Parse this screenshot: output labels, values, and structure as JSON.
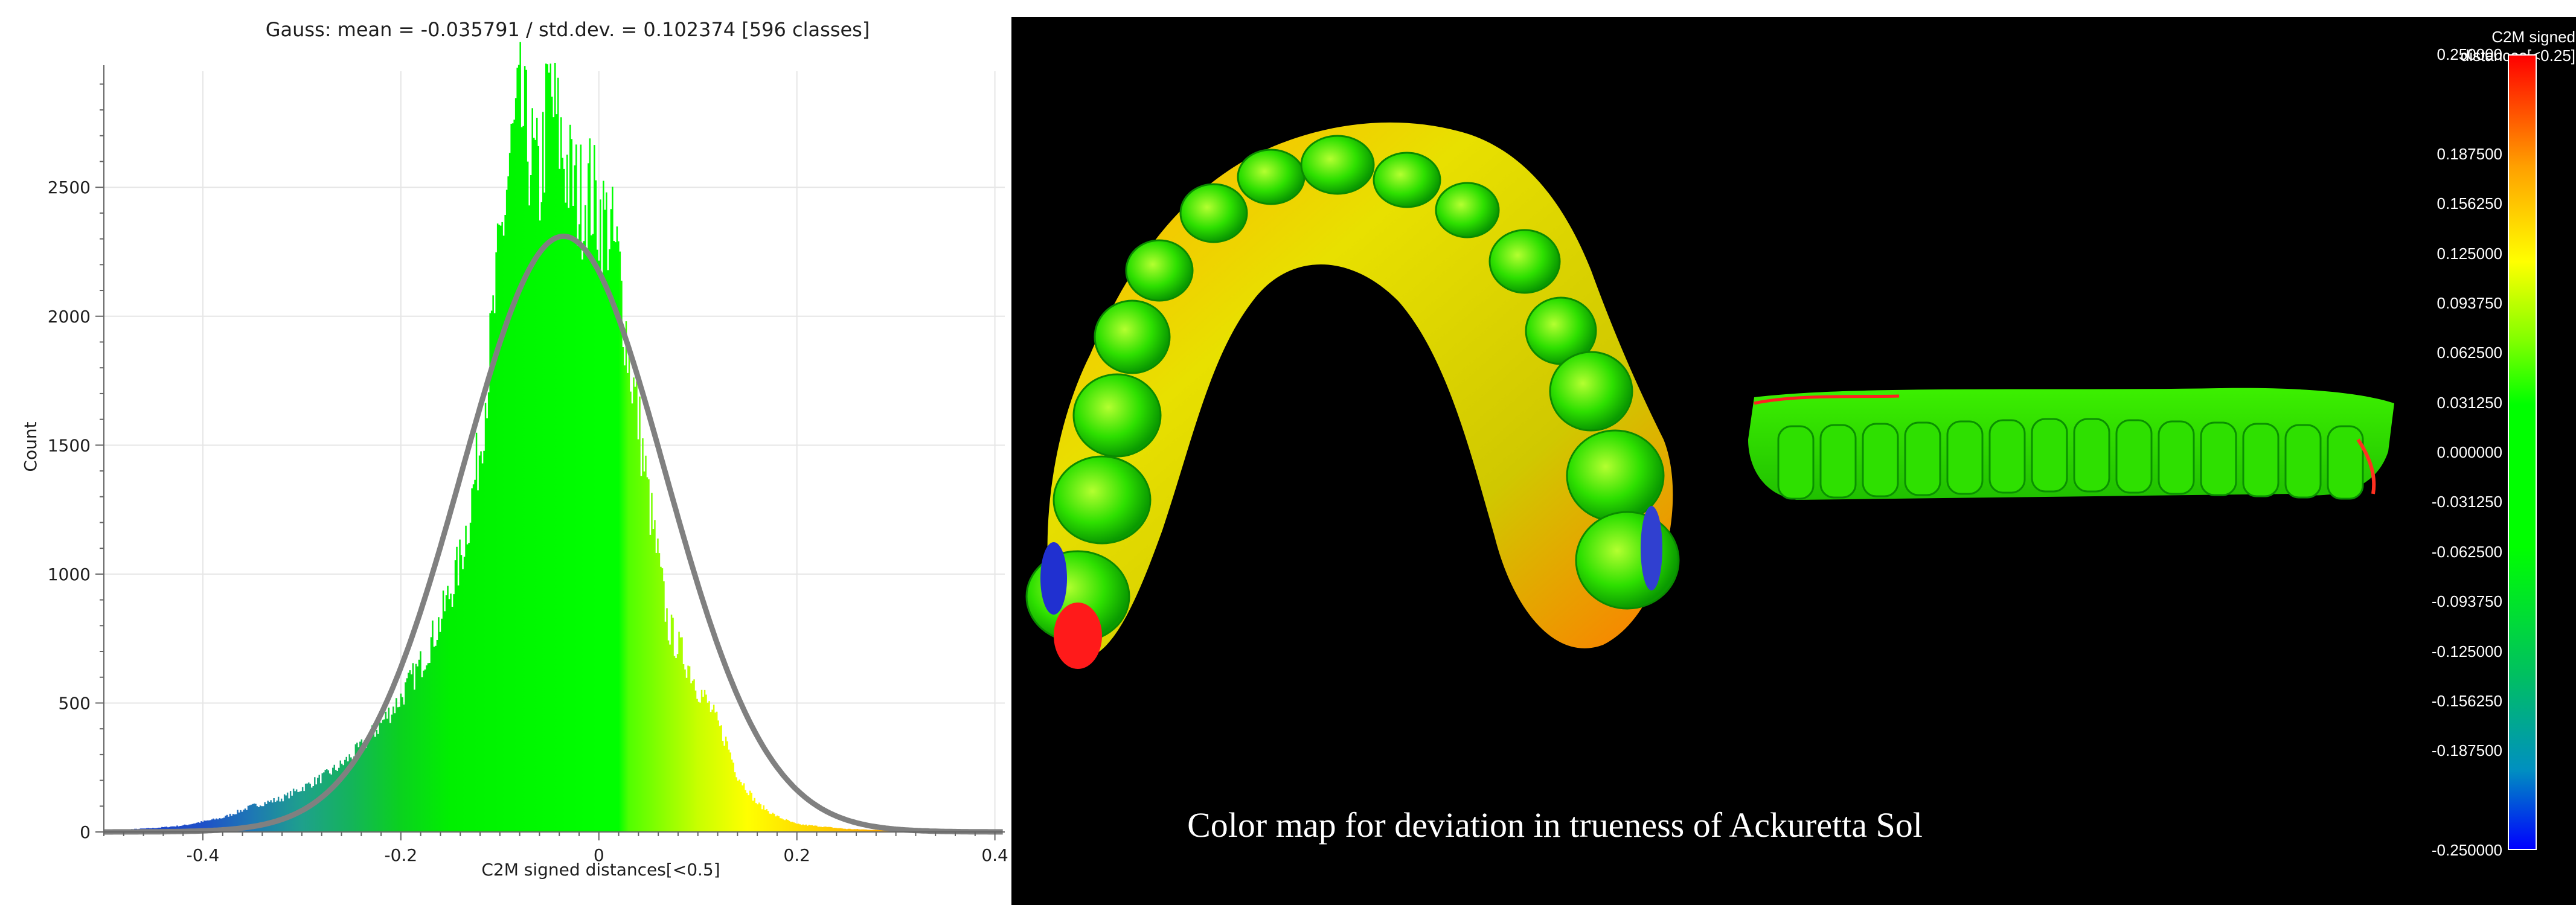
{
  "chart_data": {
    "type": "bar",
    "title": "Gauss: mean = -0.035791 / std.dev. = 0.102374 [596 classes]",
    "xlabel": "C2M signed distances[<0.5]",
    "ylabel": "Count",
    "xlim": [
      -0.5,
      0.41
    ],
    "ylim": [
      0,
      2950
    ],
    "x_ticks": [
      "-0.4",
      "-0.2",
      "0",
      "0.2",
      "0.4"
    ],
    "x_tick_values": [
      -0.4,
      -0.2,
      0,
      0.2,
      0.4
    ],
    "y_ticks": [
      "0",
      "500",
      "1000",
      "1500",
      "2000",
      "2500"
    ],
    "y_tick_values": [
      0,
      500,
      1000,
      1500,
      2000,
      2500
    ],
    "grid": true,
    "gauss_fit": {
      "mean": -0.035791,
      "std": 0.102374,
      "peak": 2310,
      "color": "#808080"
    },
    "histogram_profile": {
      "x": [
        -0.5,
        -0.45,
        -0.42,
        -0.4,
        -0.38,
        -0.35,
        -0.32,
        -0.3,
        -0.28,
        -0.26,
        -0.24,
        -0.22,
        -0.2,
        -0.18,
        -0.16,
        -0.14,
        -0.13,
        -0.12,
        -0.11,
        -0.1,
        -0.09,
        -0.08,
        -0.07,
        -0.06,
        -0.05,
        -0.04,
        -0.03,
        -0.02,
        -0.01,
        0.0,
        0.01,
        0.02,
        0.03,
        0.04,
        0.05,
        0.06,
        0.07,
        0.08,
        0.09,
        0.1,
        0.11,
        0.12,
        0.13,
        0.14,
        0.16,
        0.18,
        0.2,
        0.25,
        0.3,
        0.35,
        0.4
      ],
      "y": [
        5,
        15,
        25,
        40,
        55,
        100,
        130,
        170,
        210,
        260,
        330,
        420,
        520,
        650,
        820,
        1050,
        1250,
        1500,
        1850,
        2250,
        2600,
        2800,
        2650,
        2500,
        2880,
        2700,
        2550,
        2450,
        2500,
        2400,
        2350,
        2200,
        1850,
        1600,
        1300,
        1050,
        800,
        720,
        650,
        560,
        500,
        420,
        340,
        220,
        110,
        60,
        30,
        12,
        5,
        2,
        1
      ]
    },
    "color_scale": {
      "stops": [
        {
          "v": -0.5,
          "c": "#1e3cc8"
        },
        {
          "v": -0.4,
          "c": "#1e50c8"
        },
        {
          "v": -0.35,
          "c": "#1e78b4"
        },
        {
          "v": -0.3,
          "c": "#1ea08c"
        },
        {
          "v": -0.25,
          "c": "#14b45a"
        },
        {
          "v": -0.2,
          "c": "#0ad21e"
        },
        {
          "v": -0.15,
          "c": "#00f000"
        },
        {
          "v": 0.0,
          "c": "#00ff00"
        },
        {
          "v": 0.02,
          "c": "#00ff00"
        },
        {
          "v": 0.03,
          "c": "#50ff00"
        },
        {
          "v": 0.1,
          "c": "#c8ff00"
        },
        {
          "v": 0.15,
          "c": "#ffff00"
        },
        {
          "v": 0.2,
          "c": "#ffe000"
        },
        {
          "v": 0.3,
          "c": "#ffa000"
        },
        {
          "v": 0.41,
          "c": "#ff6000"
        }
      ]
    }
  },
  "colormap": {
    "caption": "Color map for deviation in trueness of Ackuretta Sol",
    "scalebar": {
      "title": "C2M signed distances[<0.25]",
      "labels": [
        "0.250000",
        "0.187500",
        "0.156250",
        "0.125000",
        "0.093750",
        "0.062500",
        "0.031250",
        "0.000000",
        "-0.031250",
        "-0.062500",
        "-0.093750",
        "-0.125000",
        "-0.156250",
        "-0.187500",
        "-0.250000"
      ],
      "values": [
        0.25,
        0.1875,
        0.15625,
        0.125,
        0.09375,
        0.0625,
        0.03125,
        0.0,
        -0.03125,
        -0.0625,
        -0.09375,
        -0.125,
        -0.15625,
        -0.1875,
        -0.25
      ]
    }
  }
}
